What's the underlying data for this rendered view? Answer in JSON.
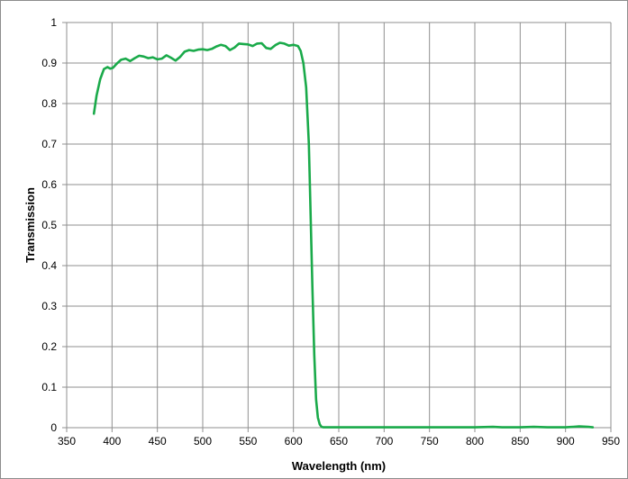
{
  "chart_data": {
    "type": "line",
    "title": "",
    "xlabel": "Wavelength (nm)",
    "ylabel": "Transmission",
    "xlim": [
      350,
      950
    ],
    "ylim": [
      0,
      1
    ],
    "x_ticks": [
      350,
      400,
      450,
      500,
      550,
      600,
      650,
      700,
      750,
      800,
      850,
      900,
      950
    ],
    "y_ticks": [
      0,
      0.1,
      0.2,
      0.3,
      0.4,
      0.5,
      0.6,
      0.7,
      0.8,
      0.9,
      1
    ],
    "grid": true,
    "legend": "none",
    "line_color": "#1aaa4a",
    "series": [
      {
        "x": [
          380,
          383,
          387,
          391,
          395,
          398,
          401,
          405,
          410,
          415,
          420,
          425,
          430,
          435,
          440,
          445,
          450,
          455,
          460,
          465,
          470,
          475,
          480,
          485,
          490,
          495,
          500,
          505,
          510,
          515,
          520,
          525,
          530,
          535,
          540,
          545,
          550,
          555,
          560,
          565,
          570,
          575,
          580,
          585,
          590,
          595,
          600,
          605,
          608,
          611,
          614,
          617,
          619,
          621,
          623,
          625,
          627,
          629,
          631,
          633,
          635,
          637,
          640,
          645,
          650,
          700,
          750,
          800,
          820,
          830,
          850,
          865,
          880,
          900,
          915,
          925,
          930
        ],
        "y": [
          0.775,
          0.82,
          0.86,
          0.885,
          0.89,
          0.886,
          0.888,
          0.898,
          0.908,
          0.911,
          0.905,
          0.912,
          0.918,
          0.916,
          0.912,
          0.914,
          0.909,
          0.911,
          0.919,
          0.913,
          0.906,
          0.915,
          0.928,
          0.932,
          0.93,
          0.933,
          0.934,
          0.932,
          0.935,
          0.941,
          0.945,
          0.942,
          0.932,
          0.938,
          0.948,
          0.947,
          0.946,
          0.942,
          0.948,
          0.949,
          0.937,
          0.935,
          0.944,
          0.95,
          0.948,
          0.943,
          0.945,
          0.942,
          0.93,
          0.9,
          0.84,
          0.7,
          0.52,
          0.34,
          0.18,
          0.07,
          0.025,
          0.008,
          0.002,
          0.001,
          0.001,
          0.001,
          0.001,
          0.001,
          0.001,
          0.001,
          0.001,
          0.001,
          0.002,
          0.001,
          0.001,
          0.002,
          0.001,
          0.001,
          0.003,
          0.002,
          0.001
        ]
      }
    ]
  }
}
